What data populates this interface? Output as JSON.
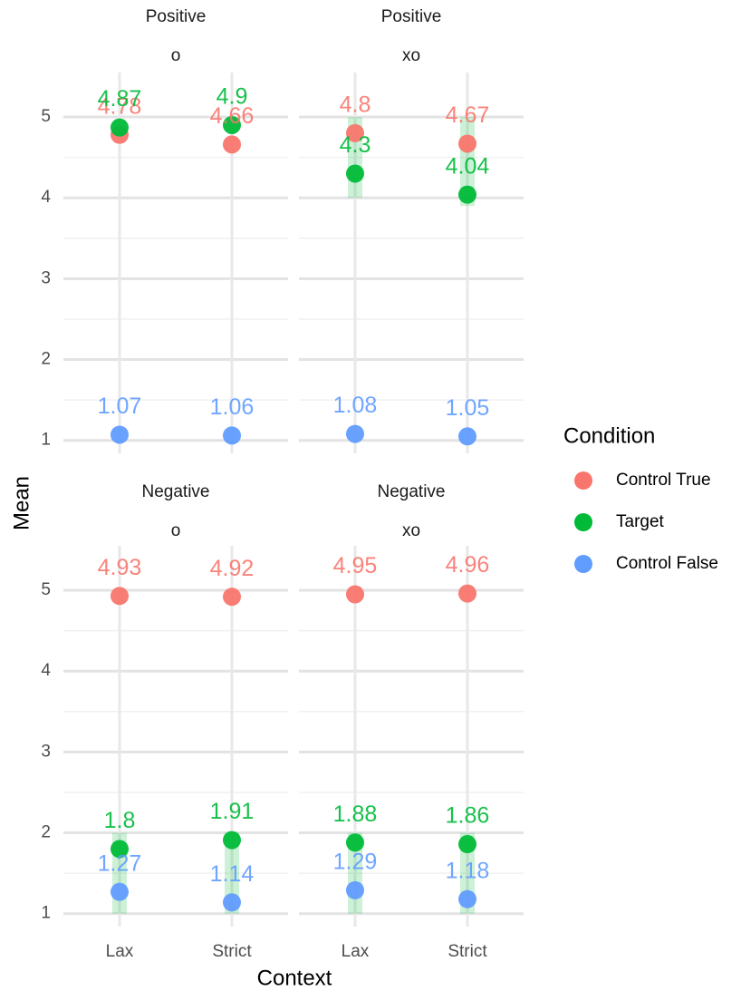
{
  "chart_data": {
    "type": "dot",
    "x_label": "Context",
    "y_label": "Mean",
    "legend_title": "Condition",
    "categories": [
      "Lax",
      "Strict"
    ],
    "ylim": [
      0.84,
      5.55
    ],
    "yticks": [
      1,
      2,
      3,
      4,
      5
    ],
    "minor_yticks": [
      1.5,
      2.5,
      3.5,
      4.5
    ],
    "grid": true,
    "series": [
      {
        "name": "Control True",
        "color": "#F8766D"
      },
      {
        "name": "Target",
        "color": "#00BA38"
      },
      {
        "name": "Control False",
        "color": "#619CFF"
      }
    ],
    "panels": [
      {
        "row": "Positive",
        "col": "o",
        "values": [
          [
            4.78,
            4.66
          ],
          [
            4.87,
            4.9
          ],
          [
            1.07,
            1.06
          ]
        ],
        "target_range": [
          null,
          null
        ]
      },
      {
        "row": "Positive",
        "col": "xo",
        "values": [
          [
            4.8,
            4.67
          ],
          [
            4.3,
            4.04
          ],
          [
            1.08,
            1.05
          ]
        ],
        "target_range": [
          [
            4.0,
            5.0
          ],
          [
            3.9,
            5.0
          ]
        ]
      },
      {
        "row": "Negative",
        "col": "o",
        "values": [
          [
            4.93,
            4.92
          ],
          [
            1.8,
            1.91
          ],
          [
            1.27,
            1.14
          ]
        ],
        "target_range": [
          [
            1.0,
            2.0
          ],
          [
            1.0,
            2.0
          ]
        ]
      },
      {
        "row": "Negative",
        "col": "xo",
        "values": [
          [
            4.95,
            4.96
          ],
          [
            1.88,
            1.86
          ],
          [
            1.29,
            1.18
          ]
        ],
        "target_range": [
          [
            1.0,
            2.0
          ],
          [
            1.0,
            2.0
          ]
        ]
      }
    ]
  }
}
